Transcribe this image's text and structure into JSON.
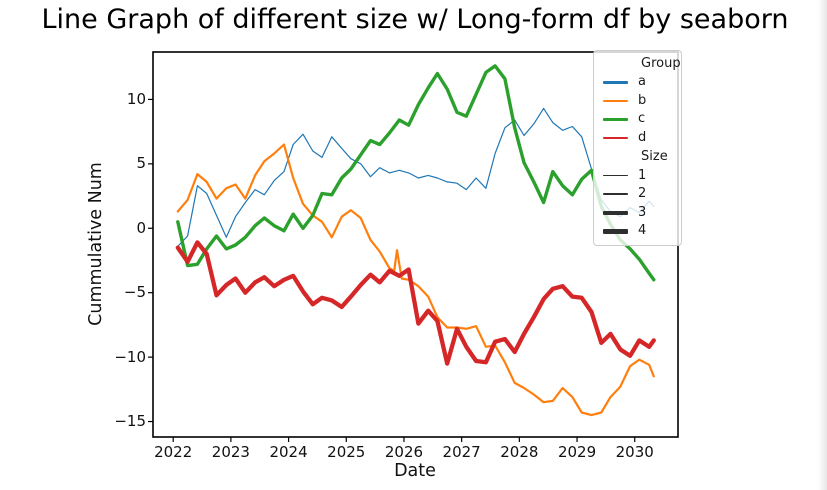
{
  "figure": {
    "title": "Line Graph of different size w/ Long-form df by seaborn"
  },
  "chart_data": {
    "type": "line",
    "title": "Line Graph of different size w/ Long-form df by seaborn",
    "xlabel": "Date",
    "ylabel": "Cummulative Num",
    "x_ticks": [
      2022,
      2023,
      2024,
      2025,
      2026,
      2027,
      2028,
      2029,
      2030
    ],
    "y_ticks": [
      -15,
      -10,
      -5,
      0,
      5,
      10
    ],
    "xlim": [
      2021.65,
      2030.75
    ],
    "ylim": [
      -16.2,
      13.68
    ],
    "grid": false,
    "legend_position": "upper right",
    "legend": {
      "group_title": "Group",
      "size_title": "Size",
      "groups": [
        {
          "label": "a",
          "color": "#1f77b4"
        },
        {
          "label": "b",
          "color": "#ff7f0e"
        },
        {
          "label": "c",
          "color": "#2ca02c"
        },
        {
          "label": "d",
          "color": "#d62728"
        }
      ],
      "sizes": [
        {
          "label": "1",
          "width": 1.4
        },
        {
          "label": "2",
          "width": 2.4
        },
        {
          "label": "3",
          "width": 3.6
        },
        {
          "label": "4",
          "width": 4.8
        }
      ],
      "size_swatch_color": "#2e2e2e"
    },
    "series": [
      {
        "name": "a",
        "group": "a",
        "size": 1,
        "color": "#1f77b4",
        "line_width": 1.2,
        "points": [
          [
            2022.08,
            -1.4
          ],
          [
            2022.25,
            -0.6
          ],
          [
            2022.42,
            3.3
          ],
          [
            2022.58,
            2.7
          ],
          [
            2022.75,
            1.0
          ],
          [
            2022.92,
            -0.7
          ],
          [
            2023.08,
            0.9
          ],
          [
            2023.25,
            2.0
          ],
          [
            2023.42,
            3.0
          ],
          [
            2023.58,
            2.6
          ],
          [
            2023.75,
            3.7
          ],
          [
            2023.92,
            4.4
          ],
          [
            2024.08,
            6.5
          ],
          [
            2024.25,
            7.3
          ],
          [
            2024.42,
            6.0
          ],
          [
            2024.58,
            5.5
          ],
          [
            2024.75,
            7.1
          ],
          [
            2024.92,
            6.2
          ],
          [
            2025.08,
            5.4
          ],
          [
            2025.25,
            5.0
          ],
          [
            2025.42,
            4.0
          ],
          [
            2025.58,
            4.7
          ],
          [
            2025.75,
            4.3
          ],
          [
            2025.92,
            4.5
          ],
          [
            2026.08,
            4.3
          ],
          [
            2026.25,
            3.9
          ],
          [
            2026.42,
            4.1
          ],
          [
            2026.58,
            3.9
          ],
          [
            2026.75,
            3.6
          ],
          [
            2026.92,
            3.5
          ],
          [
            2027.08,
            3.0
          ],
          [
            2027.25,
            3.9
          ],
          [
            2027.42,
            3.1
          ],
          [
            2027.58,
            5.8
          ],
          [
            2027.75,
            7.8
          ],
          [
            2027.92,
            8.4
          ],
          [
            2028.08,
            7.2
          ],
          [
            2028.25,
            8.1
          ],
          [
            2028.42,
            9.3
          ],
          [
            2028.58,
            8.2
          ],
          [
            2028.75,
            7.6
          ],
          [
            2028.92,
            7.9
          ],
          [
            2029.08,
            7.1
          ],
          [
            2029.25,
            4.6
          ],
          [
            2029.42,
            2.2
          ],
          [
            2029.58,
            1.3
          ],
          [
            2029.75,
            0.9
          ],
          [
            2029.92,
            1.6
          ],
          [
            2030.08,
            1.2
          ],
          [
            2030.25,
            2.1
          ],
          [
            2030.33,
            1.7
          ]
        ]
      },
      {
        "name": "b",
        "group": "b",
        "size": 2,
        "color": "#ff7f0e",
        "line_width": 2.2,
        "points": [
          [
            2022.08,
            1.3
          ],
          [
            2022.25,
            2.2
          ],
          [
            2022.42,
            4.2
          ],
          [
            2022.58,
            3.6
          ],
          [
            2022.75,
            2.3
          ],
          [
            2022.92,
            3.1
          ],
          [
            2023.08,
            3.4
          ],
          [
            2023.25,
            2.3
          ],
          [
            2023.42,
            4.1
          ],
          [
            2023.58,
            5.2
          ],
          [
            2023.75,
            5.8
          ],
          [
            2023.92,
            6.5
          ],
          [
            2024.08,
            3.9
          ],
          [
            2024.25,
            1.9
          ],
          [
            2024.42,
            1.0
          ],
          [
            2024.58,
            0.5
          ],
          [
            2024.75,
            -0.7
          ],
          [
            2024.92,
            0.9
          ],
          [
            2025.08,
            1.4
          ],
          [
            2025.25,
            0.8
          ],
          [
            2025.42,
            -0.9
          ],
          [
            2025.58,
            -1.8
          ],
          [
            2025.75,
            -3.1
          ],
          [
            2025.83,
            -3.3
          ],
          [
            2025.88,
            -1.7
          ],
          [
            2025.96,
            -3.9
          ],
          [
            2026.08,
            -4.0
          ],
          [
            2026.25,
            -4.5
          ],
          [
            2026.42,
            -5.3
          ],
          [
            2026.58,
            -6.9
          ],
          [
            2026.75,
            -7.7
          ],
          [
            2026.92,
            -7.7
          ],
          [
            2027.08,
            -7.8
          ],
          [
            2027.25,
            -7.6
          ],
          [
            2027.42,
            -9.2
          ],
          [
            2027.58,
            -9.1
          ],
          [
            2027.75,
            -10.4
          ],
          [
            2027.92,
            -12.0
          ],
          [
            2028.08,
            -12.4
          ],
          [
            2028.25,
            -12.9
          ],
          [
            2028.42,
            -13.5
          ],
          [
            2028.58,
            -13.4
          ],
          [
            2028.75,
            -12.4
          ],
          [
            2028.92,
            -13.1
          ],
          [
            2029.08,
            -14.3
          ],
          [
            2029.25,
            -14.5
          ],
          [
            2029.42,
            -14.3
          ],
          [
            2029.58,
            -13.1
          ],
          [
            2029.75,
            -12.3
          ],
          [
            2029.92,
            -10.7
          ],
          [
            2030.08,
            -10.2
          ],
          [
            2030.25,
            -10.6
          ],
          [
            2030.33,
            -11.5
          ]
        ]
      },
      {
        "name": "c",
        "group": "c",
        "size": 3,
        "color": "#2ca02c",
        "line_width": 3.4,
        "points": [
          [
            2022.08,
            0.5
          ],
          [
            2022.25,
            -2.9
          ],
          [
            2022.42,
            -2.8
          ],
          [
            2022.58,
            -1.6
          ],
          [
            2022.75,
            -0.6
          ],
          [
            2022.92,
            -1.6
          ],
          [
            2023.08,
            -1.3
          ],
          [
            2023.25,
            -0.7
          ],
          [
            2023.42,
            0.2
          ],
          [
            2023.58,
            0.8
          ],
          [
            2023.75,
            0.2
          ],
          [
            2023.92,
            -0.2
          ],
          [
            2024.08,
            1.1
          ],
          [
            2024.25,
            0.0
          ],
          [
            2024.42,
            1.0
          ],
          [
            2024.58,
            2.7
          ],
          [
            2024.75,
            2.6
          ],
          [
            2024.92,
            3.9
          ],
          [
            2025.08,
            4.6
          ],
          [
            2025.25,
            5.7
          ],
          [
            2025.42,
            6.8
          ],
          [
            2025.58,
            6.5
          ],
          [
            2025.75,
            7.4
          ],
          [
            2025.92,
            8.4
          ],
          [
            2026.08,
            8.0
          ],
          [
            2026.25,
            9.6
          ],
          [
            2026.42,
            10.9
          ],
          [
            2026.58,
            12.0
          ],
          [
            2026.75,
            10.8
          ],
          [
            2026.92,
            9.0
          ],
          [
            2027.08,
            8.7
          ],
          [
            2027.25,
            10.4
          ],
          [
            2027.42,
            12.1
          ],
          [
            2027.58,
            12.6
          ],
          [
            2027.75,
            11.6
          ],
          [
            2027.92,
            7.8
          ],
          [
            2028.08,
            5.1
          ],
          [
            2028.25,
            3.6
          ],
          [
            2028.42,
            2.0
          ],
          [
            2028.58,
            4.4
          ],
          [
            2028.75,
            3.3
          ],
          [
            2028.92,
            2.6
          ],
          [
            2029.08,
            3.8
          ],
          [
            2029.25,
            4.5
          ],
          [
            2029.42,
            1.7
          ],
          [
            2029.58,
            0.3
          ],
          [
            2029.75,
            -0.9
          ],
          [
            2029.92,
            -1.6
          ],
          [
            2030.08,
            -2.4
          ],
          [
            2030.25,
            -3.5
          ],
          [
            2030.33,
            -4.0
          ]
        ]
      },
      {
        "name": "d",
        "group": "d",
        "size": 4,
        "color": "#d62728",
        "line_width": 4.3,
        "points": [
          [
            2022.08,
            -1.5
          ],
          [
            2022.25,
            -2.6
          ],
          [
            2022.42,
            -1.1
          ],
          [
            2022.58,
            -2.0
          ],
          [
            2022.75,
            -5.2
          ],
          [
            2022.92,
            -4.4
          ],
          [
            2023.08,
            -3.9
          ],
          [
            2023.25,
            -5.0
          ],
          [
            2023.42,
            -4.2
          ],
          [
            2023.58,
            -3.8
          ],
          [
            2023.75,
            -4.5
          ],
          [
            2023.92,
            -4.0
          ],
          [
            2024.08,
            -3.7
          ],
          [
            2024.25,
            -4.9
          ],
          [
            2024.42,
            -5.9
          ],
          [
            2024.58,
            -5.4
          ],
          [
            2024.75,
            -5.6
          ],
          [
            2024.92,
            -6.1
          ],
          [
            2025.08,
            -5.3
          ],
          [
            2025.25,
            -4.4
          ],
          [
            2025.42,
            -3.6
          ],
          [
            2025.58,
            -4.2
          ],
          [
            2025.75,
            -3.3
          ],
          [
            2025.92,
            -3.7
          ],
          [
            2026.08,
            -3.2
          ],
          [
            2026.25,
            -7.4
          ],
          [
            2026.42,
            -6.4
          ],
          [
            2026.58,
            -7.2
          ],
          [
            2026.75,
            -10.5
          ],
          [
            2026.92,
            -7.8
          ],
          [
            2027.08,
            -9.2
          ],
          [
            2027.25,
            -10.3
          ],
          [
            2027.42,
            -10.4
          ],
          [
            2027.58,
            -8.8
          ],
          [
            2027.75,
            -8.6
          ],
          [
            2027.92,
            -9.6
          ],
          [
            2028.08,
            -8.2
          ],
          [
            2028.25,
            -6.9
          ],
          [
            2028.42,
            -5.5
          ],
          [
            2028.58,
            -4.7
          ],
          [
            2028.75,
            -4.5
          ],
          [
            2028.92,
            -5.3
          ],
          [
            2029.08,
            -5.4
          ],
          [
            2029.25,
            -6.5
          ],
          [
            2029.42,
            -8.9
          ],
          [
            2029.58,
            -8.2
          ],
          [
            2029.75,
            -9.4
          ],
          [
            2029.92,
            -9.9
          ],
          [
            2030.08,
            -8.7
          ],
          [
            2030.25,
            -9.2
          ],
          [
            2030.33,
            -8.7
          ]
        ]
      }
    ]
  }
}
